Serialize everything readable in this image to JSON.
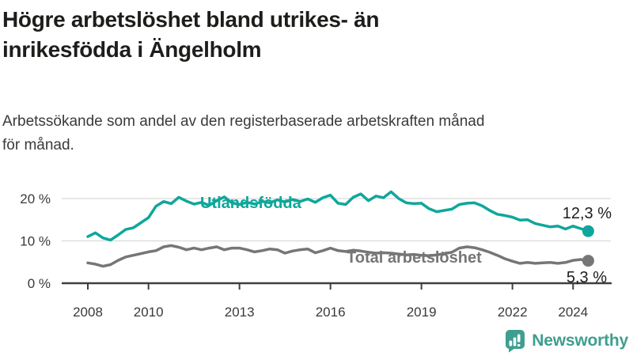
{
  "header": {
    "title_lines": [
      "Högre arbetslöshet bland utrikes- än",
      "inrikesfödda i Ängelholm"
    ],
    "subtitle_lines": [
      "Arbetssökande som andel av den registerbaserade arbetskraften månad",
      "för månad."
    ]
  },
  "colors": {
    "foreign_born": "#0fa79b",
    "total": "#767676",
    "axis": "#3f3f3f",
    "grid": "#dadada",
    "value_label": "#1d1d1b",
    "tick_label": "#3a3a3a",
    "logo": "#3f9e8f"
  },
  "chart_data": {
    "type": "line",
    "title": "Högre arbetslöshet bland utrikes- än inrikesfödda i Ängelholm",
    "subtitle": "Arbetssökande som andel av den registerbaserade arbetskraften månad för månad.",
    "unit": "%",
    "x_start": 2008.0,
    "x_step": 0.25,
    "xlim": [
      2008,
      2024.58
    ],
    "ylim": [
      0,
      22.5
    ],
    "grid": "horizontal-only",
    "legend_position": "inline-on-line",
    "y_ticks": [
      {
        "value": 0,
        "label": "0 %"
      },
      {
        "value": 10,
        "label": "10 %"
      },
      {
        "value": 20,
        "label": "20 %"
      }
    ],
    "x_ticks": [
      {
        "year": 2008,
        "label": "2008"
      },
      {
        "year": 2010,
        "label": "2010"
      },
      {
        "year": 2013,
        "label": "2013"
      },
      {
        "year": 2016,
        "label": "2016"
      },
      {
        "year": 2019,
        "label": "2019"
      },
      {
        "year": 2022,
        "label": "2022"
      },
      {
        "year": 2024,
        "label": "2024"
      }
    ],
    "series": [
      {
        "name": "Utlandsfödda",
        "color_key": "foreign_born",
        "end_value": 12.3,
        "end_label": "12,3 %",
        "values": [
          11.0,
          11.9,
          10.7,
          10.2,
          11.4,
          12.7,
          13.1,
          14.3,
          15.5,
          18.2,
          19.3,
          18.8,
          20.3,
          19.4,
          18.7,
          19.1,
          18.4,
          19.5,
          20.4,
          19.0,
          18.6,
          19.1,
          18.7,
          19.3,
          19.0,
          19.7,
          19.2,
          19.8,
          19.3,
          19.9,
          19.1,
          20.2,
          20.8,
          18.9,
          18.6,
          20.3,
          21.1,
          19.5,
          20.6,
          20.2,
          21.6,
          20.0,
          19.0,
          18.8,
          18.9,
          17.6,
          16.9,
          17.2,
          17.5,
          18.6,
          18.9,
          19.0,
          18.3,
          17.2,
          16.3,
          16.0,
          15.6,
          14.9,
          15.0,
          14.1,
          13.7,
          13.3,
          13.5,
          12.8,
          13.5,
          12.9,
          12.3
        ]
      },
      {
        "name": "Total arbetslöshet",
        "color_key": "total",
        "end_value": 5.3,
        "end_label": "5,3 %",
        "values": [
          4.8,
          4.5,
          4.0,
          4.4,
          5.4,
          6.2,
          6.6,
          7.0,
          7.4,
          7.7,
          8.6,
          8.9,
          8.5,
          7.9,
          8.3,
          7.9,
          8.3,
          8.6,
          7.9,
          8.3,
          8.3,
          7.9,
          7.4,
          7.7,
          8.1,
          7.9,
          7.1,
          7.6,
          7.9,
          8.1,
          7.2,
          7.7,
          8.3,
          7.7,
          7.5,
          7.8,
          7.6,
          7.3,
          7.1,
          7.2,
          7.1,
          6.9,
          6.7,
          6.8,
          6.6,
          6.5,
          6.7,
          7.0,
          7.3,
          8.3,
          8.6,
          8.4,
          7.9,
          7.3,
          6.6,
          5.8,
          5.2,
          4.7,
          4.9,
          4.7,
          4.8,
          4.9,
          4.7,
          4.9,
          5.4,
          5.6,
          5.3
        ]
      }
    ]
  },
  "footer": {
    "brand": "Newsworthy"
  }
}
